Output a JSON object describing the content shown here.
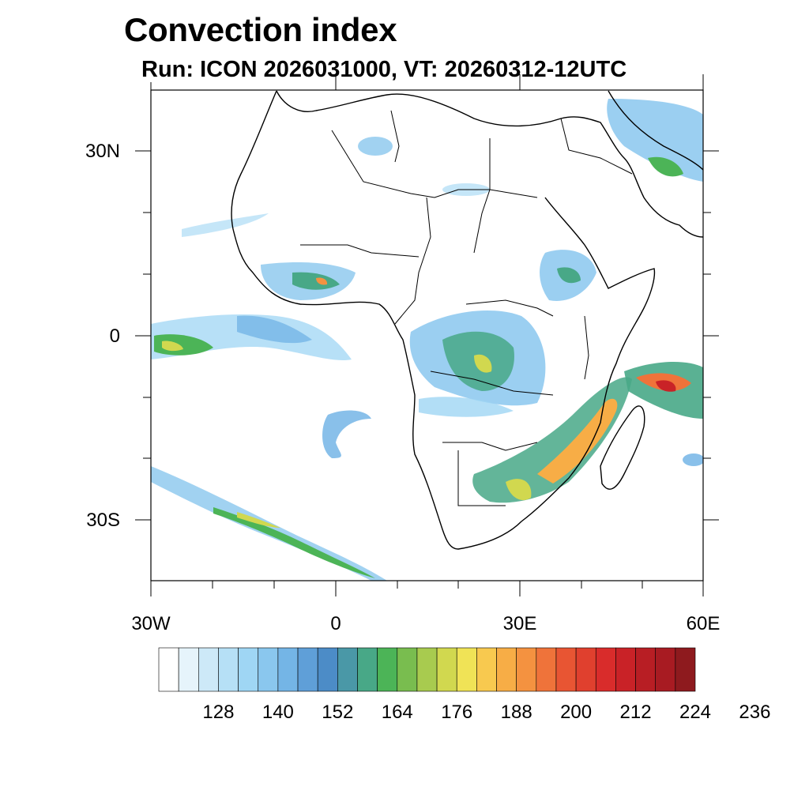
{
  "title": "Convection index",
  "subtitle": "Run: ICON 2026031000,  VT: 20260312-12UTC",
  "lat_labels": [
    "30N",
    "0",
    "30S"
  ],
  "lon_labels": [
    "30W",
    "0",
    "30E",
    "60E"
  ],
  "colorbar": {
    "labels": [
      "128",
      "140",
      "152",
      "164",
      "176",
      "188",
      "200",
      "212",
      "224",
      "236"
    ],
    "colors": [
      "#ffffff",
      "#e6f4fb",
      "#cde9f8",
      "#b6e0f6",
      "#9fd6f4",
      "#8ac7ee",
      "#74b5e6",
      "#5f9fd8",
      "#4c8cc7",
      "#4a98a7",
      "#48a887",
      "#4cb457",
      "#79bd4f",
      "#a8cb4f",
      "#d1d84f",
      "#f0e356",
      "#f8c94f",
      "#f7ad46",
      "#f49240",
      "#ef733a",
      "#e85533",
      "#e0402e",
      "#d92c2b",
      "#c92227",
      "#b81e24",
      "#a81b22",
      "#8e1a1e"
    ]
  },
  "colors": {
    "land_line": "#000000",
    "frame": "#000000",
    "background": "#ffffff"
  }
}
